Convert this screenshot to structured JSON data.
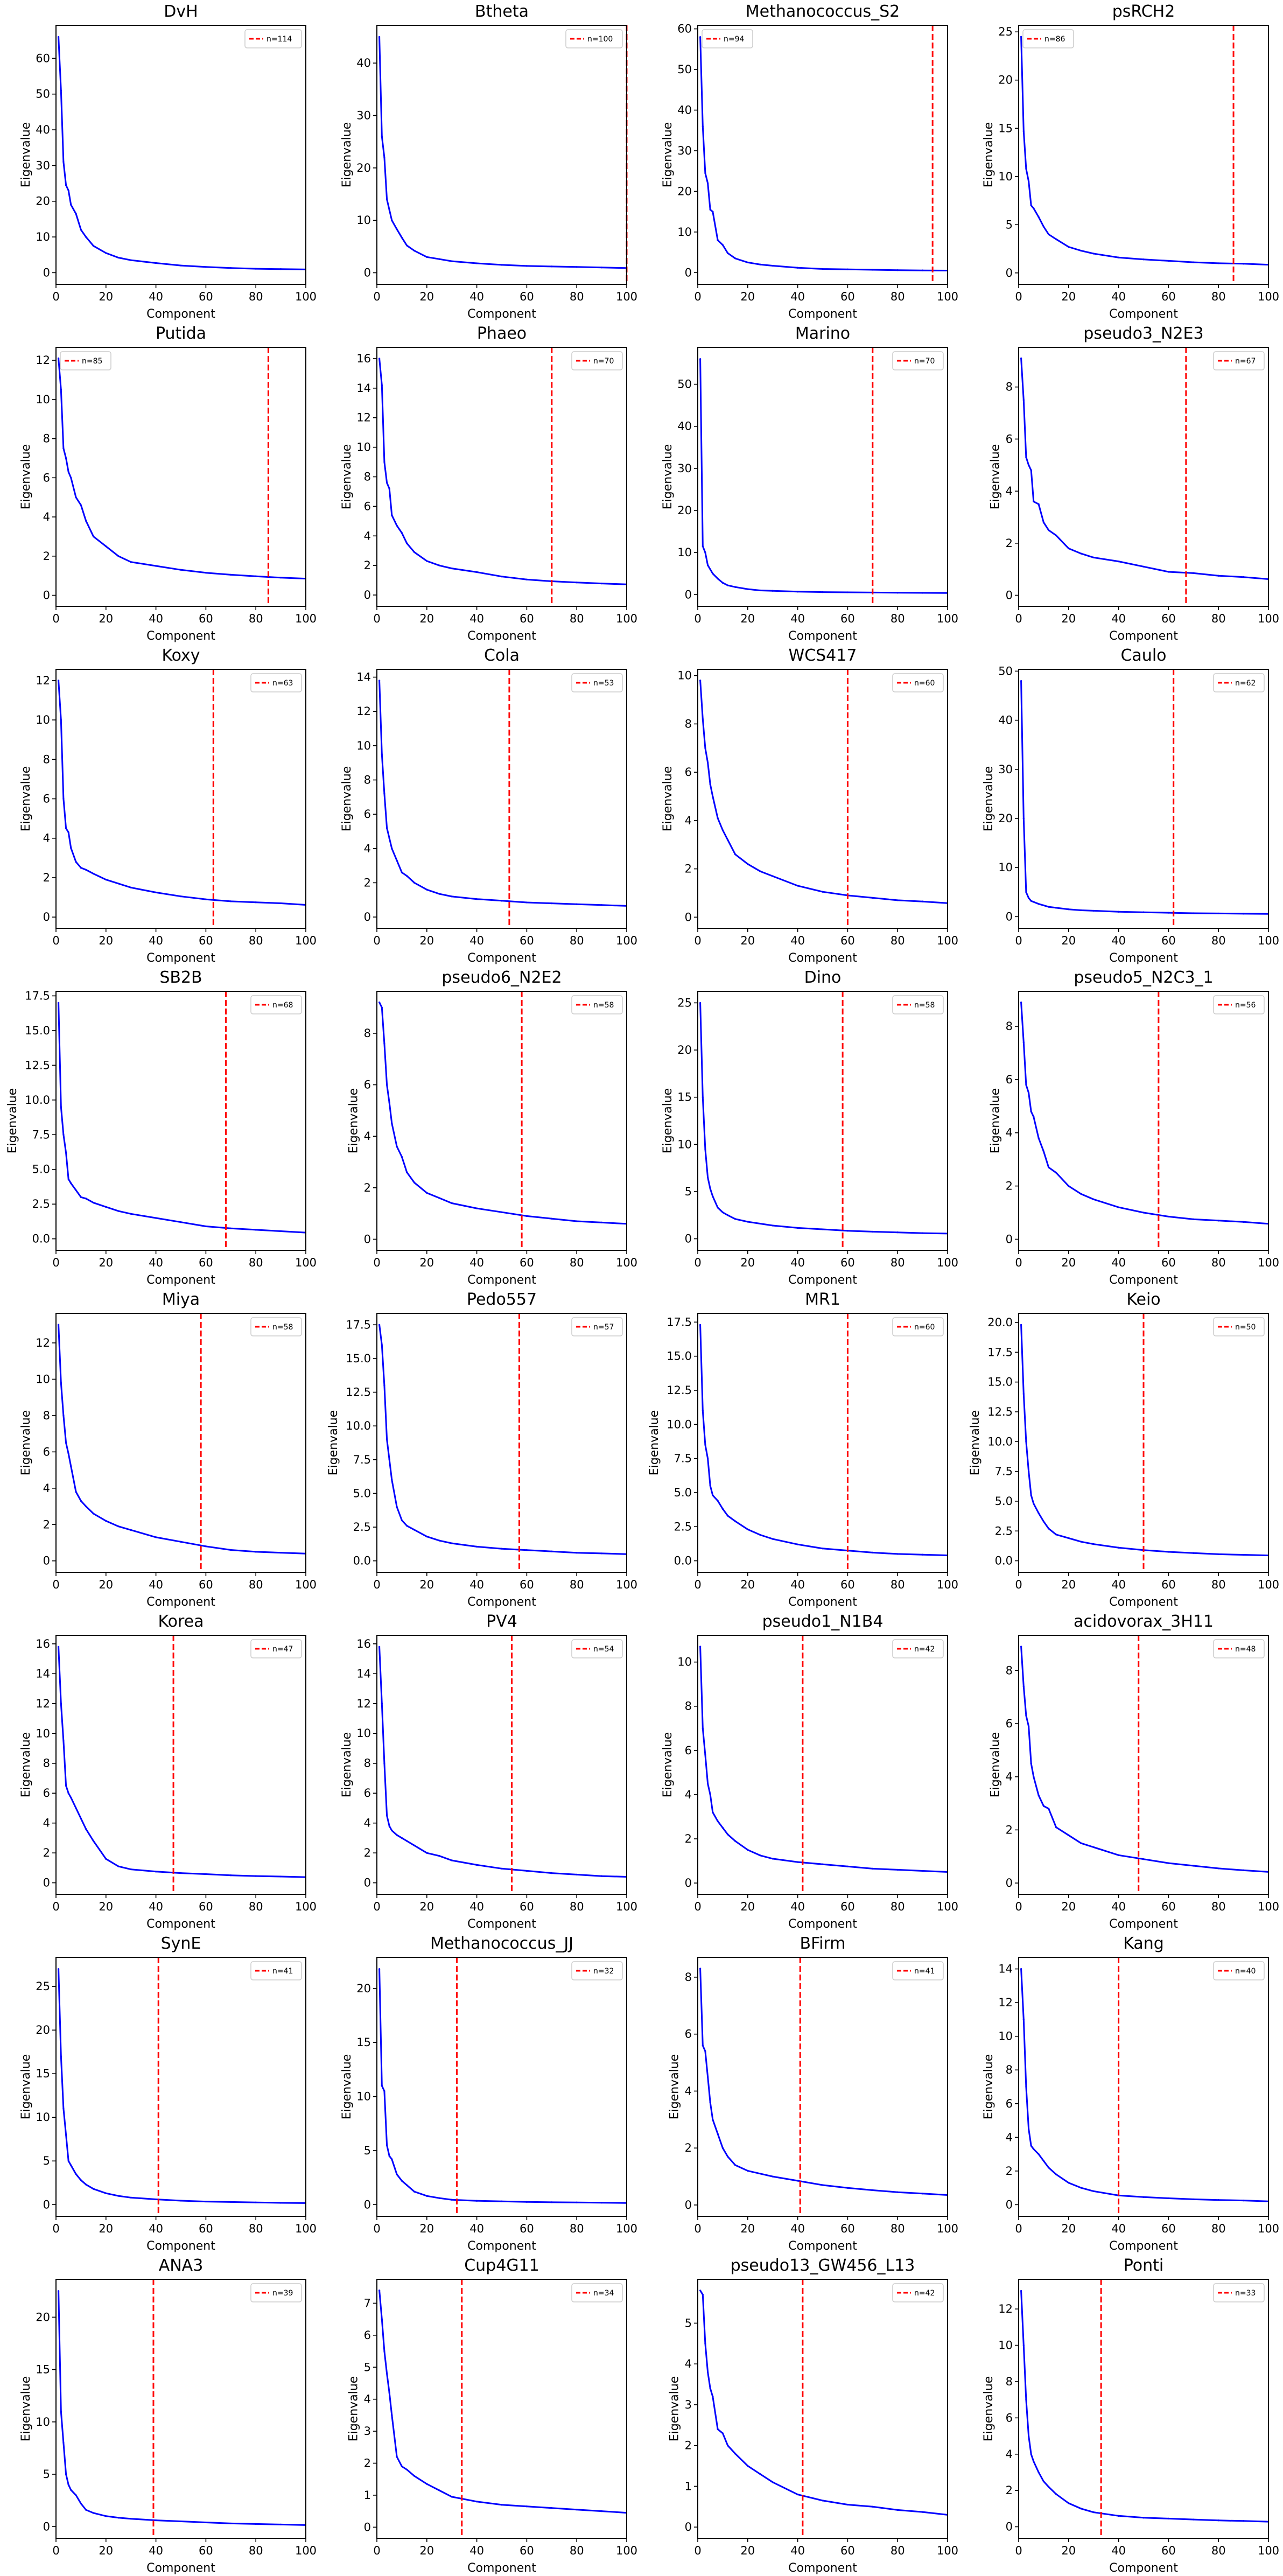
{
  "figure": {
    "background": "#ffffff",
    "line_color": "#0000ff",
    "threshold_color": "#ff0000"
  },
  "chart_data": {
    "type": "line",
    "layout": "grid 8 rows x 4 columns",
    "xlabel": "Component",
    "ylabel": "Eigenvalue",
    "xlim": [
      0,
      100
    ],
    "xticks": [
      "0",
      "20",
      "40",
      "60",
      "80",
      "100"
    ],
    "components": [
      1,
      2,
      3,
      4,
      5,
      6,
      8,
      10,
      12,
      15,
      20,
      25,
      30,
      40,
      50,
      60,
      70,
      80,
      90,
      100
    ],
    "panels": [
      {
        "title": "DvH",
        "legend": "n=114",
        "n": 114,
        "legend_loc": "upper right",
        "yticks": [
          "0",
          "10",
          "20",
          "30",
          "40",
          "50",
          "60"
        ],
        "values": [
          66,
          51,
          31,
          24.5,
          23,
          19,
          16.5,
          12,
          10,
          7.5,
          5.5,
          4.2,
          3.5,
          2.7,
          2.0,
          1.6,
          1.3,
          1.1,
          1.0,
          0.9
        ]
      },
      {
        "title": "Btheta",
        "legend": "n=100",
        "n": 100,
        "legend_loc": "upper right",
        "yticks": [
          "0",
          "10",
          "20",
          "30",
          "40"
        ],
        "values": [
          45,
          26,
          22,
          14,
          12,
          10,
          8.3,
          6.7,
          5.2,
          4.2,
          3.0,
          2.6,
          2.2,
          1.8,
          1.5,
          1.3,
          1.2,
          1.1,
          1.0,
          0.9
        ]
      },
      {
        "title": "Methanococcus_S2",
        "legend": "n=94",
        "n": 94,
        "legend_loc": "upper left",
        "yticks": [
          "0",
          "10",
          "20",
          "30",
          "40",
          "50",
          "60"
        ],
        "values": [
          58,
          36,
          24.5,
          22,
          15.5,
          15,
          8,
          6.8,
          4.8,
          3.5,
          2.5,
          2.0,
          1.7,
          1.2,
          0.9,
          0.8,
          0.7,
          0.6,
          0.55,
          0.5
        ]
      },
      {
        "title": "psRCH2",
        "legend": "n=86",
        "n": 86,
        "legend_loc": "upper left",
        "yticks": [
          "0",
          "5",
          "10",
          "15",
          "20",
          "25"
        ],
        "values": [
          24.5,
          14.7,
          10.8,
          9.5,
          7.0,
          6.7,
          5.8,
          4.8,
          4.0,
          3.5,
          2.7,
          2.3,
          2.0,
          1.6,
          1.4,
          1.25,
          1.1,
          1.0,
          0.95,
          0.85
        ]
      },
      {
        "title": "Putida",
        "legend": "n=85",
        "n": 85,
        "legend_loc": "upper left",
        "yticks": [
          "0",
          "2",
          "4",
          "6",
          "8",
          "10",
          "12"
        ],
        "values": [
          12.1,
          10.5,
          7.5,
          7.0,
          6.3,
          6.0,
          5.0,
          4.6,
          3.8,
          3.0,
          2.5,
          2.0,
          1.7,
          1.5,
          1.3,
          1.15,
          1.05,
          0.97,
          0.9,
          0.85
        ]
      },
      {
        "title": "Phaeo",
        "legend": "n=70",
        "n": 70,
        "legend_loc": "upper right",
        "yticks": [
          "0",
          "2",
          "4",
          "6",
          "8",
          "10",
          "12",
          "14",
          "16"
        ],
        "values": [
          16,
          14.2,
          9,
          7.6,
          7.2,
          5.4,
          4.7,
          4.2,
          3.5,
          2.9,
          2.3,
          2.0,
          1.8,
          1.55,
          1.25,
          1.05,
          0.93,
          0.85,
          0.78,
          0.72
        ]
      },
      {
        "title": "Marino",
        "legend": "n=70",
        "n": 70,
        "legend_loc": "upper right",
        "yticks": [
          "0",
          "10",
          "20",
          "30",
          "40",
          "50"
        ],
        "values": [
          56,
          11.5,
          10,
          7,
          6,
          5,
          3.8,
          2.8,
          2.2,
          1.8,
          1.3,
          1.0,
          0.9,
          0.7,
          0.6,
          0.55,
          0.5,
          0.45,
          0.42,
          0.4
        ]
      },
      {
        "title": "pseudo3_N2E3",
        "legend": "n=67",
        "n": 67,
        "legend_loc": "upper right",
        "yticks": [
          "0",
          "2",
          "4",
          "6",
          "8"
        ],
        "values": [
          9.1,
          7.5,
          5.3,
          5.0,
          4.8,
          3.6,
          3.5,
          2.8,
          2.5,
          2.3,
          1.8,
          1.6,
          1.45,
          1.3,
          1.1,
          0.9,
          0.85,
          0.75,
          0.7,
          0.62
        ]
      },
      {
        "title": "Koxy",
        "legend": "n=63",
        "n": 63,
        "legend_loc": "upper right",
        "yticks": [
          "0",
          "2",
          "4",
          "6",
          "8",
          "10",
          "12"
        ],
        "values": [
          12,
          10,
          6,
          4.5,
          4.3,
          3.5,
          2.8,
          2.5,
          2.4,
          2.2,
          1.9,
          1.7,
          1.5,
          1.25,
          1.05,
          0.9,
          0.8,
          0.75,
          0.7,
          0.62
        ]
      },
      {
        "title": "Cola",
        "legend": "n=53",
        "n": 53,
        "legend_loc": "upper right",
        "yticks": [
          "0",
          "2",
          "4",
          "6",
          "8",
          "10",
          "12",
          "14"
        ],
        "values": [
          13.8,
          9.5,
          7.2,
          5.2,
          4.6,
          4.0,
          3.3,
          2.6,
          2.4,
          2.0,
          1.6,
          1.35,
          1.2,
          1.05,
          0.95,
          0.85,
          0.8,
          0.75,
          0.7,
          0.65
        ]
      },
      {
        "title": "WCS417",
        "legend": "n=60",
        "n": 60,
        "legend_loc": "upper right",
        "yticks": [
          "0",
          "2",
          "4",
          "6",
          "8",
          "10"
        ],
        "values": [
          9.8,
          8.2,
          7,
          6.4,
          5.5,
          5.0,
          4.1,
          3.6,
          3.2,
          2.6,
          2.2,
          1.9,
          1.7,
          1.3,
          1.05,
          0.9,
          0.8,
          0.7,
          0.65,
          0.58
        ]
      },
      {
        "title": "Caulo",
        "legend": "n=62",
        "n": 62,
        "legend_loc": "upper right",
        "yticks": [
          "0",
          "10",
          "20",
          "30",
          "40",
          "50"
        ],
        "values": [
          48,
          20,
          5,
          3.8,
          3.2,
          3.0,
          2.6,
          2.3,
          2.0,
          1.8,
          1.5,
          1.3,
          1.2,
          1.0,
          0.9,
          0.8,
          0.7,
          0.65,
          0.6,
          0.55
        ]
      },
      {
        "title": "SB2B",
        "legend": "n=68",
        "n": 68,
        "legend_loc": "upper right",
        "yticks": [
          "0.0",
          "2.5",
          "5.0",
          "7.5",
          "10.0",
          "12.5",
          "15.0",
          "17.5"
        ],
        "values": [
          17,
          9.5,
          7.5,
          6.2,
          4.3,
          4.0,
          3.5,
          3.0,
          2.9,
          2.6,
          2.3,
          2.0,
          1.8,
          1.5,
          1.2,
          0.9,
          0.75,
          0.65,
          0.55,
          0.45
        ]
      },
      {
        "title": "pseudo6_N2E2",
        "legend": "n=58",
        "n": 58,
        "legend_loc": "upper right",
        "yticks": [
          "0",
          "2",
          "4",
          "6",
          "8"
        ],
        "values": [
          9.2,
          9.0,
          7.6,
          6.0,
          5.3,
          4.5,
          3.6,
          3.2,
          2.6,
          2.2,
          1.8,
          1.6,
          1.4,
          1.2,
          1.05,
          0.9,
          0.8,
          0.7,
          0.65,
          0.6
        ]
      },
      {
        "title": "Dino",
        "legend": "n=58",
        "n": 58,
        "legend_loc": "upper right",
        "yticks": [
          "0",
          "5",
          "10",
          "15",
          "20",
          "25"
        ],
        "values": [
          25,
          15,
          9.5,
          6.5,
          5.3,
          4.5,
          3.3,
          2.8,
          2.5,
          2.1,
          1.8,
          1.6,
          1.4,
          1.15,
          1.0,
          0.85,
          0.75,
          0.68,
          0.6,
          0.55
        ]
      },
      {
        "title": "pseudo5_N2C3_1",
        "legend": "n=56",
        "n": 56,
        "legend_loc": "upper right",
        "yticks": [
          "0",
          "2",
          "4",
          "6",
          "8"
        ],
        "values": [
          8.9,
          7.4,
          5.8,
          5.5,
          4.8,
          4.6,
          3.8,
          3.3,
          2.7,
          2.5,
          2.0,
          1.7,
          1.5,
          1.2,
          1.0,
          0.85,
          0.75,
          0.7,
          0.65,
          0.58
        ]
      },
      {
        "title": "Miya",
        "legend": "n=58",
        "n": 58,
        "legend_loc": "upper right",
        "yticks": [
          "0",
          "2",
          "4",
          "6",
          "8",
          "10",
          "12"
        ],
        "values": [
          13,
          9.8,
          8,
          6.5,
          5.9,
          5.2,
          3.8,
          3.3,
          3.0,
          2.6,
          2.2,
          1.9,
          1.7,
          1.3,
          1.05,
          0.8,
          0.6,
          0.5,
          0.45,
          0.4
        ]
      },
      {
        "title": "Pedo557",
        "legend": "n=57",
        "n": 57,
        "legend_loc": "upper right",
        "yticks": [
          "0.0",
          "2.5",
          "5.0",
          "7.5",
          "10.0",
          "12.5",
          "15.0",
          "17.5"
        ],
        "values": [
          17.5,
          16,
          13,
          9,
          7.5,
          6,
          4,
          3,
          2.6,
          2.3,
          1.8,
          1.5,
          1.3,
          1.05,
          0.9,
          0.8,
          0.7,
          0.6,
          0.55,
          0.5
        ]
      },
      {
        "title": "MR1",
        "legend": "n=60",
        "n": 60,
        "legend_loc": "upper right",
        "yticks": [
          "0.0",
          "2.5",
          "5.0",
          "7.5",
          "10.0",
          "12.5",
          "15.0",
          "17.5"
        ],
        "values": [
          17.3,
          11,
          8.5,
          7.5,
          5.5,
          4.8,
          4.4,
          3.8,
          3.3,
          2.9,
          2.3,
          1.9,
          1.6,
          1.2,
          0.9,
          0.75,
          0.6,
          0.5,
          0.45,
          0.4
        ]
      },
      {
        "title": "Keio",
        "legend": "n=50",
        "n": 50,
        "legend_loc": "upper right",
        "yticks": [
          "0.0",
          "2.5",
          "5.0",
          "7.5",
          "10.0",
          "12.5",
          "15.0",
          "17.5",
          "20.0"
        ],
        "values": [
          19.8,
          14,
          10,
          7.5,
          5.5,
          4.8,
          4.0,
          3.3,
          2.7,
          2.2,
          1.9,
          1.6,
          1.4,
          1.1,
          0.9,
          0.75,
          0.65,
          0.55,
          0.5,
          0.45
        ]
      },
      {
        "title": "Korea",
        "legend": "n=47",
        "n": 47,
        "legend_loc": "upper right",
        "yticks": [
          "0",
          "2",
          "4",
          "6",
          "8",
          "10",
          "12",
          "14",
          "16"
        ],
        "values": [
          15.8,
          12,
          9.5,
          6.5,
          6.0,
          5.7,
          5.0,
          4.3,
          3.6,
          2.8,
          1.6,
          1.1,
          0.9,
          0.75,
          0.65,
          0.58,
          0.5,
          0.45,
          0.42,
          0.38
        ]
      },
      {
        "title": "PV4",
        "legend": "n=54",
        "n": 54,
        "legend_loc": "upper right",
        "yticks": [
          "0",
          "2",
          "4",
          "6",
          "8",
          "10",
          "12",
          "14",
          "16"
        ],
        "values": [
          15.8,
          12,
          8,
          4.5,
          3.8,
          3.5,
          3.2,
          3.0,
          2.8,
          2.5,
          2.0,
          1.8,
          1.5,
          1.2,
          0.95,
          0.8,
          0.65,
          0.55,
          0.45,
          0.4
        ]
      },
      {
        "title": "pseudo1_N1B4",
        "legend": "n=42",
        "n": 42,
        "legend_loc": "upper right",
        "yticks": [
          "0",
          "2",
          "4",
          "6",
          "8",
          "10"
        ],
        "values": [
          10.7,
          7.0,
          5.8,
          4.5,
          4.0,
          3.2,
          2.8,
          2.5,
          2.2,
          1.9,
          1.5,
          1.25,
          1.1,
          0.95,
          0.85,
          0.75,
          0.65,
          0.6,
          0.55,
          0.5
        ]
      },
      {
        "title": "acidovorax_3H11",
        "legend": "n=48",
        "n": 48,
        "legend_loc": "upper right",
        "yticks": [
          "0",
          "2",
          "4",
          "6",
          "8"
        ],
        "values": [
          8.9,
          7.4,
          6.3,
          5.9,
          4.5,
          4.0,
          3.3,
          2.9,
          2.8,
          2.1,
          1.8,
          1.5,
          1.35,
          1.05,
          0.9,
          0.75,
          0.65,
          0.55,
          0.48,
          0.42
        ]
      },
      {
        "title": "SynE",
        "legend": "n=41",
        "n": 41,
        "legend_loc": "upper right",
        "yticks": [
          "0",
          "5",
          "10",
          "15",
          "20",
          "25"
        ],
        "values": [
          27,
          17,
          11,
          8,
          5,
          4.5,
          3.5,
          2.8,
          2.3,
          1.8,
          1.3,
          1.0,
          0.8,
          0.6,
          0.45,
          0.35,
          0.3,
          0.25,
          0.2,
          0.18
        ]
      },
      {
        "title": "Methanococcus_JJ",
        "legend": "n=32",
        "n": 32,
        "legend_loc": "upper right",
        "yticks": [
          "0",
          "5",
          "10",
          "15",
          "20"
        ],
        "values": [
          21.8,
          11,
          10.5,
          5.5,
          4.5,
          4.2,
          2.8,
          2.2,
          1.8,
          1.2,
          0.8,
          0.6,
          0.45,
          0.35,
          0.3,
          0.25,
          0.22,
          0.2,
          0.18,
          0.15
        ]
      },
      {
        "title": "BFirm",
        "legend": "n=41",
        "n": 41,
        "legend_loc": "upper right",
        "yticks": [
          "0",
          "2",
          "4",
          "6",
          "8"
        ],
        "values": [
          8.3,
          5.6,
          5.4,
          4.5,
          3.6,
          3.0,
          2.5,
          2.0,
          1.7,
          1.4,
          1.2,
          1.1,
          1.0,
          0.85,
          0.7,
          0.6,
          0.52,
          0.45,
          0.4,
          0.35
        ]
      },
      {
        "title": "Kang",
        "legend": "n=40",
        "n": 40,
        "legend_loc": "upper right",
        "yticks": [
          "0",
          "2",
          "4",
          "6",
          "8",
          "10",
          "12",
          "14"
        ],
        "values": [
          14,
          11,
          7,
          4.5,
          3.5,
          3.3,
          3.0,
          2.6,
          2.2,
          1.8,
          1.3,
          1.0,
          0.8,
          0.55,
          0.45,
          0.38,
          0.32,
          0.28,
          0.25,
          0.2
        ]
      },
      {
        "title": "ANA3",
        "legend": "n=39",
        "n": 39,
        "legend_loc": "upper right",
        "yticks": [
          "0",
          "5",
          "10",
          "15",
          "20"
        ],
        "values": [
          22.5,
          11,
          8,
          5,
          4,
          3.5,
          3.0,
          2.2,
          1.6,
          1.3,
          1.0,
          0.85,
          0.75,
          0.6,
          0.5,
          0.4,
          0.3,
          0.25,
          0.2,
          0.15
        ]
      },
      {
        "title": "Cup4G11",
        "legend": "n=34",
        "n": 34,
        "legend_loc": "upper right",
        "yticks": [
          "0",
          "1",
          "2",
          "3",
          "4",
          "5",
          "6",
          "7"
        ],
        "values": [
          7.4,
          6.5,
          5.5,
          4.8,
          4.2,
          3.5,
          2.2,
          1.9,
          1.8,
          1.6,
          1.35,
          1.15,
          0.95,
          0.8,
          0.7,
          0.65,
          0.6,
          0.55,
          0.5,
          0.45
        ]
      },
      {
        "title": "pseudo13_GW456_L13",
        "legend": "n=42",
        "n": 42,
        "legend_loc": "upper right",
        "yticks": [
          "0",
          "1",
          "2",
          "3",
          "4",
          "5"
        ],
        "values": [
          5.8,
          5.7,
          4.5,
          3.8,
          3.4,
          3.2,
          2.4,
          2.3,
          2.0,
          1.8,
          1.5,
          1.3,
          1.1,
          0.8,
          0.65,
          0.55,
          0.5,
          0.42,
          0.37,
          0.3
        ]
      },
      {
        "title": "Ponti",
        "legend": "n=33",
        "n": 33,
        "legend_loc": "upper right",
        "yticks": [
          "0",
          "2",
          "4",
          "6",
          "8",
          "10",
          "12"
        ],
        "values": [
          13,
          10,
          7,
          5,
          4,
          3.6,
          3.0,
          2.5,
          2.2,
          1.8,
          1.3,
          1.0,
          0.8,
          0.6,
          0.5,
          0.45,
          0.4,
          0.35,
          0.32,
          0.28
        ]
      }
    ]
  }
}
